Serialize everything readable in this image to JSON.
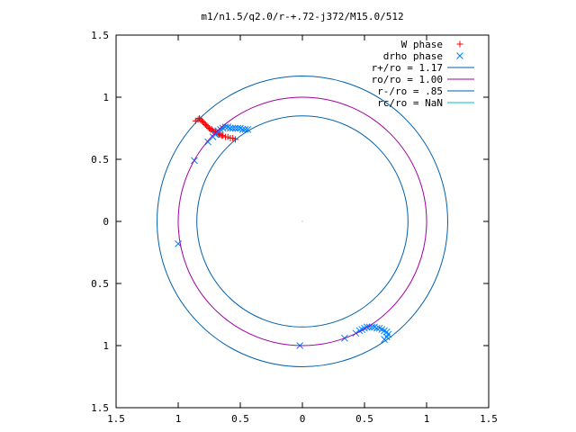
{
  "chart_data": {
    "type": "scatter",
    "title": "m1/n1.5/q2.0/r-+.72-j372/M15.0/512",
    "xlabel": "",
    "ylabel": "",
    "xlim": [
      -1.5,
      1.5
    ],
    "ylim": [
      -1.5,
      1.5
    ],
    "xticks": [
      -1.5,
      -1,
      -0.5,
      0,
      0.5,
      1,
      1.5
    ],
    "yticks": [
      -1.5,
      -1,
      -0.5,
      0,
      0.5,
      1,
      1.5
    ],
    "xtick_labels": [
      "1.5",
      "1",
      "0.5",
      "0",
      "0.5",
      "1",
      "1.5"
    ],
    "ytick_labels": [
      "1.5",
      "1",
      "0.5",
      "0",
      "0.5",
      "1",
      "1.5"
    ],
    "grid": false,
    "legend_position": "top-right",
    "series": [
      {
        "name": "W phase",
        "kind": "points",
        "marker": "plus",
        "color": "#ff0000",
        "points": [
          [
            -0.86,
            0.81
          ],
          [
            -0.84,
            0.82
          ],
          [
            -0.83,
            0.83
          ],
          [
            -0.82,
            0.82
          ],
          [
            -0.81,
            0.81
          ],
          [
            -0.8,
            0.8
          ],
          [
            -0.79,
            0.79
          ],
          [
            -0.78,
            0.78
          ],
          [
            -0.77,
            0.77
          ],
          [
            -0.76,
            0.76
          ],
          [
            -0.75,
            0.75
          ],
          [
            -0.74,
            0.74
          ],
          [
            -0.73,
            0.74
          ],
          [
            -0.72,
            0.73
          ],
          [
            -0.71,
            0.72
          ],
          [
            -0.7,
            0.72
          ],
          [
            -0.69,
            0.71
          ],
          [
            -0.68,
            0.71
          ],
          [
            -0.67,
            0.7
          ],
          [
            -0.66,
            0.7
          ],
          [
            -0.65,
            0.69
          ],
          [
            -0.64,
            0.69
          ],
          [
            -0.62,
            0.68
          ],
          [
            -0.6,
            0.68
          ],
          [
            -0.58,
            0.67
          ],
          [
            -0.56,
            0.67
          ],
          [
            -0.54,
            0.66
          ]
        ]
      },
      {
        "name": "drho phase",
        "kind": "points",
        "marker": "cross",
        "color": "#0080ff",
        "points": [
          [
            -0.68,
            0.73
          ],
          [
            -0.66,
            0.74
          ],
          [
            -0.64,
            0.75
          ],
          [
            -0.62,
            0.76
          ],
          [
            -0.6,
            0.76
          ],
          [
            -0.58,
            0.75
          ],
          [
            -0.56,
            0.75
          ],
          [
            -0.54,
            0.75
          ],
          [
            -0.52,
            0.75
          ],
          [
            -0.5,
            0.75
          ],
          [
            -0.48,
            0.74
          ],
          [
            -0.46,
            0.74
          ],
          [
            -0.44,
            0.74
          ],
          [
            -0.7,
            0.7
          ],
          [
            -0.72,
            0.68
          ],
          [
            -0.76,
            0.64
          ],
          [
            -0.87,
            0.49
          ],
          [
            -1.0,
            -0.18
          ],
          [
            -0.02,
            -1.0
          ],
          [
            0.34,
            -0.94
          ],
          [
            0.43,
            -0.9
          ],
          [
            0.46,
            -0.88
          ],
          [
            0.48,
            -0.87
          ],
          [
            0.5,
            -0.86
          ],
          [
            0.52,
            -0.85
          ],
          [
            0.54,
            -0.85
          ],
          [
            0.56,
            -0.85
          ],
          [
            0.58,
            -0.85
          ],
          [
            0.6,
            -0.86
          ],
          [
            0.62,
            -0.86
          ],
          [
            0.64,
            -0.87
          ],
          [
            0.66,
            -0.88
          ],
          [
            0.68,
            -0.89
          ],
          [
            0.69,
            -0.91
          ],
          [
            0.68,
            -0.93
          ],
          [
            0.66,
            -0.95
          ]
        ]
      },
      {
        "name": "r+/ro = 1.17",
        "kind": "circle",
        "radius": 1.17,
        "color": "#0060ad"
      },
      {
        "name": "ro/ro = 1.00",
        "kind": "circle",
        "radius": 1.0,
        "color": "#a000a0"
      },
      {
        "name": "r-/ro = .85",
        "kind": "circle",
        "radius": 0.85,
        "color": "#0060ad"
      },
      {
        "name": "rc/ro = NaN",
        "kind": "circle",
        "radius": null,
        "color": "#00c0c0"
      }
    ],
    "extra_points": [
      {
        "x": 0.0,
        "y": 0.0,
        "marker": "dot",
        "color": "#a0a0a0"
      }
    ]
  }
}
